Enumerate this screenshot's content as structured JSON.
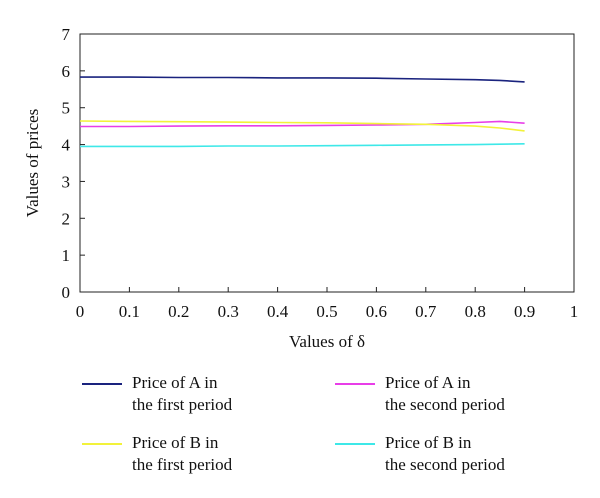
{
  "chart_data": {
    "type": "line",
    "title": "",
    "xlabel": "Values of δ",
    "ylabel": "Values of prices",
    "xlim": [
      0,
      1
    ],
    "ylim": [
      0,
      7
    ],
    "x_ticks": [
      "0",
      "0.1",
      "0.2",
      "0.3",
      "0.4",
      "0.5",
      "0.6",
      "0.7",
      "0.8",
      "0.9",
      "1"
    ],
    "y_ticks": [
      "0",
      "1",
      "2",
      "3",
      "4",
      "5",
      "6",
      "7"
    ],
    "grid": false,
    "legend_position": "bottom",
    "x": [
      0,
      0.1,
      0.2,
      0.3,
      0.4,
      0.5,
      0.6,
      0.7,
      0.8,
      0.85,
      0.9
    ],
    "series": [
      {
        "name": "Price of A in the first period",
        "line1": "Price of A in",
        "line2": "the first period",
        "color": "#1a237e",
        "values": [
          5.83,
          5.83,
          5.82,
          5.82,
          5.81,
          5.81,
          5.8,
          5.78,
          5.76,
          5.74,
          5.7
        ]
      },
      {
        "name": "Price of A in the second period",
        "line1": "Price of A in",
        "line2": "the second period",
        "color": "#e83ee8",
        "values": [
          4.49,
          4.49,
          4.5,
          4.51,
          4.51,
          4.52,
          4.53,
          4.55,
          4.6,
          4.63,
          4.58
        ]
      },
      {
        "name": "Price of B in the first period",
        "line1": "Price of B in",
        "line2": "the first period",
        "color": "#f2f23a",
        "values": [
          4.64,
          4.63,
          4.62,
          4.61,
          4.6,
          4.59,
          4.57,
          4.55,
          4.5,
          4.45,
          4.37
        ]
      },
      {
        "name": "Price of B in the second period",
        "line1": "Price of B in",
        "line2": "the second period",
        "color": "#3ee8e8",
        "values": [
          3.95,
          3.95,
          3.95,
          3.96,
          3.96,
          3.97,
          3.98,
          3.99,
          4.0,
          4.01,
          4.02
        ]
      }
    ]
  }
}
